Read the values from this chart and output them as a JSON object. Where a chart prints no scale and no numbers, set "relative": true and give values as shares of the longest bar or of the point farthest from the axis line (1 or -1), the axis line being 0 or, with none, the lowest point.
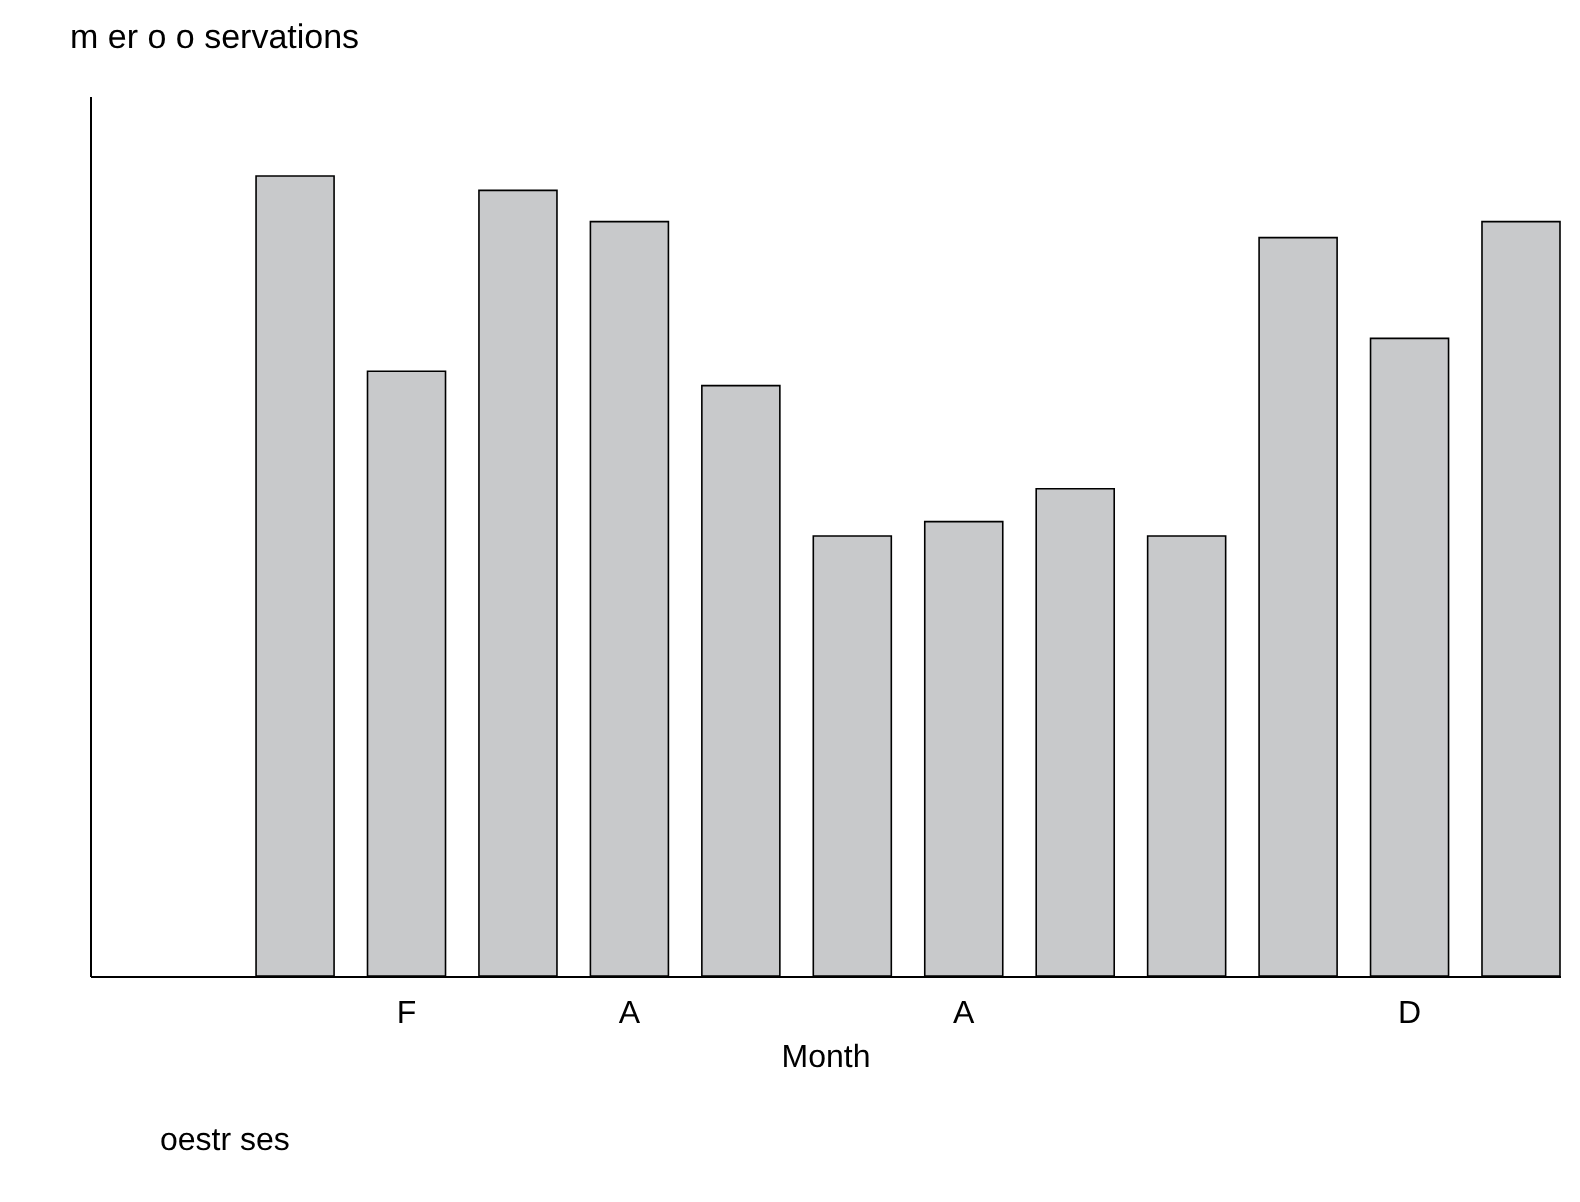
{
  "chart_data": {
    "type": "bar",
    "relative": true,
    "title": "m er o  o servations",
    "xlabel": "Month",
    "annotations": [
      "oestr ses"
    ],
    "categories": [
      null,
      "F",
      null,
      "A",
      null,
      null,
      "A",
      null,
      null,
      null,
      "D",
      null
    ],
    "values": [
      1,
      0.756,
      0.982,
      0.943,
      0.738,
      0.55,
      0.568,
      0.609,
      0.55,
      0.923,
      0.797,
      0.943
    ],
    "color": "#c8c9cb",
    "grid": false
  }
}
